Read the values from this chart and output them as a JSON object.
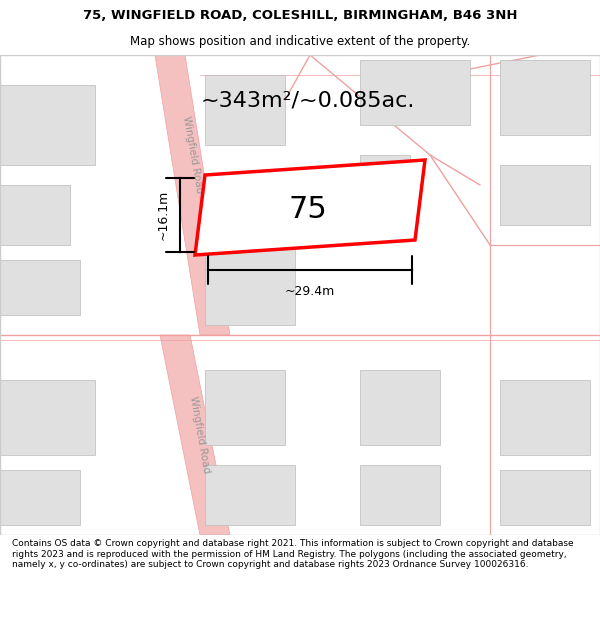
{
  "title_line1": "75, WINGFIELD ROAD, COLESHILL, BIRMINGHAM, B46 3NH",
  "title_line2": "Map shows position and indicative extent of the property.",
  "footer_text": "Contains OS data © Crown copyright and database right 2021. This information is subject to Crown copyright and database rights 2023 and is reproduced with the permission of HM Land Registry. The polygons (including the associated geometry, namely x, y co-ordinates) are subject to Crown copyright and database rights 2023 Ordnance Survey 100026316.",
  "map_bg": "#ffffff",
  "title_bg": "#ffffff",
  "footer_bg": "#ffffff",
  "road_color": "#f5c0c0",
  "building_color": "#e0e0e0",
  "road_edge_color": "#f0a0a0",
  "highlight_color": "#ff0000",
  "highlight_fill": "#ffffff",
  "dim_text_color": "#000000",
  "area_text": "~343m²/~0.085ac.",
  "dim_width_text": "~29.4m",
  "dim_height_text": "~16.1m",
  "property_number": "75"
}
